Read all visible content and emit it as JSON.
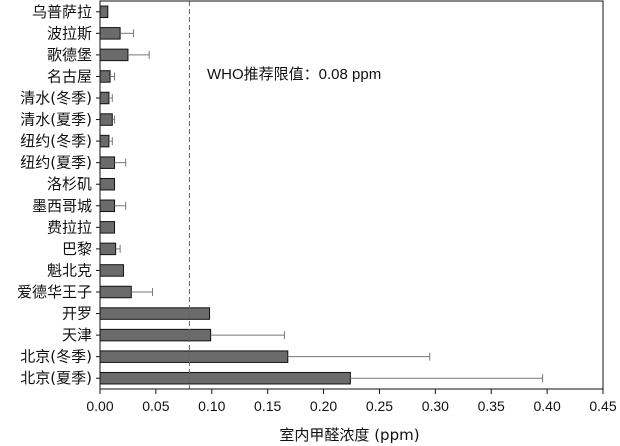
{
  "chart_data": {
    "type": "bar",
    "orientation": "horizontal",
    "title": "",
    "xlabel": "室内甲醛浓度 (ppm)",
    "ylabel": "",
    "xlim": [
      0,
      0.45
    ],
    "xticks": [
      "0.00",
      "0.05",
      "0.10",
      "0.15",
      "0.20",
      "0.25",
      "0.30",
      "0.35",
      "0.40",
      "0.45"
    ],
    "categories": [
      "乌普萨拉",
      "波拉斯",
      "歌德堡",
      "名古屋",
      "清水(冬季)",
      "清水(夏季)",
      "纽约(冬季)",
      "纽约(夏季)",
      "洛杉矶",
      "墨西哥城",
      "费拉拉",
      "巴黎",
      "魁北克",
      "爱德华王子",
      "开罗",
      "天津",
      "北京(冬季)",
      "北京(夏季)"
    ],
    "values": [
      0.007,
      0.018,
      0.025,
      0.009,
      0.008,
      0.011,
      0.008,
      0.013,
      0.013,
      0.013,
      0.013,
      0.014,
      0.021,
      0.028,
      0.098,
      0.099,
      0.168,
      0.224
    ],
    "error_plus": [
      0,
      0.012,
      0.019,
      0.004,
      0.003,
      0.002,
      0.003,
      0.01,
      0,
      0.01,
      0,
      0.004,
      0,
      0.019,
      0,
      0.066,
      0.127,
      0.172
    ],
    "reference_line": {
      "value": 0.08,
      "label": "WHO推荐限值：0.08 ppm",
      "style": "dashed"
    },
    "bar_color": "#6b6b6b",
    "grid": false,
    "legend": "none"
  }
}
